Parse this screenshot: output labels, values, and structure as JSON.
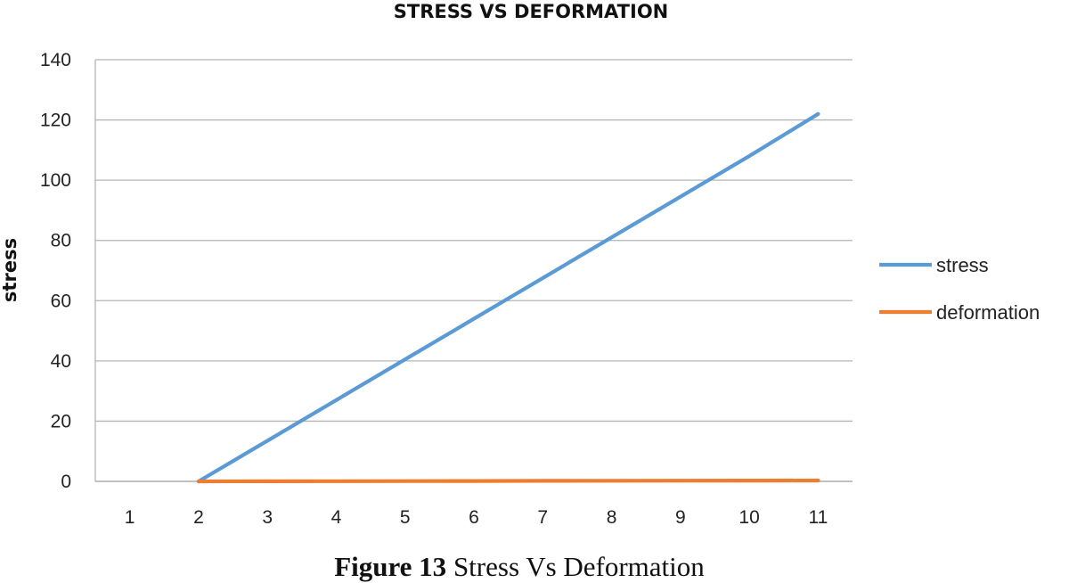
{
  "chart_data": {
    "type": "line",
    "title": "STRESS VS DEFORMATION",
    "xlabel": "",
    "ylabel": "stress",
    "categories": [
      1,
      2,
      3,
      4,
      5,
      6,
      7,
      8,
      9,
      10,
      11
    ],
    "ylim": [
      0,
      140
    ],
    "yticks": [
      0,
      20,
      40,
      60,
      80,
      100,
      120,
      140
    ],
    "grid": true,
    "legend_position": "right",
    "series": [
      {
        "name": "stress",
        "color": "#5B9BD5",
        "values": [
          null,
          0,
          13.5,
          27,
          40.5,
          54,
          67.5,
          81,
          94.5,
          108,
          122
        ]
      },
      {
        "name": "deformation",
        "color": "#ED7D31",
        "values": [
          null,
          0,
          0.03,
          0.07,
          0.1,
          0.13,
          0.17,
          0.2,
          0.23,
          0.27,
          0.3
        ]
      }
    ]
  },
  "caption": {
    "label": "Figure 13",
    "text": " Stress Vs Deformation"
  }
}
